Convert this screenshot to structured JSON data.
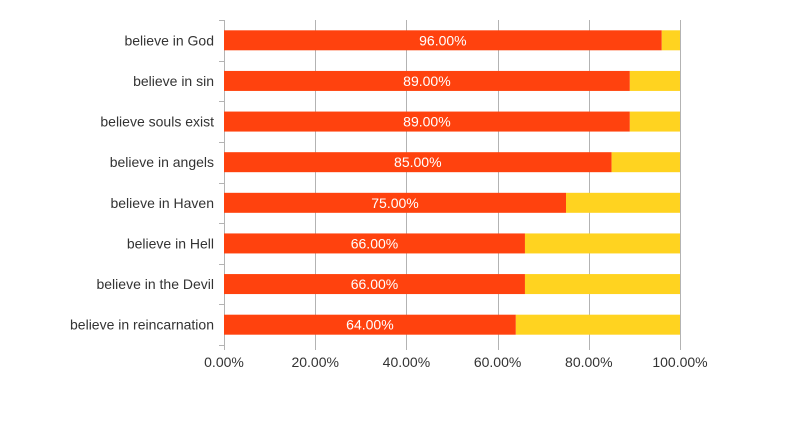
{
  "chart_data": {
    "type": "bar",
    "orientation": "horizontal",
    "stacked": true,
    "categories": [
      "believe in God",
      "believe in sin",
      "believe souls exist",
      "believe in angels",
      "believe in Haven",
      "believe in Hell",
      "believe in the Devil",
      "believe in reincarnation"
    ],
    "series": [
      {
        "values": [
          96,
          89,
          89,
          85,
          75,
          66,
          66,
          64
        ],
        "labels": [
          "96.00%",
          "89.00%",
          "89.00%",
          "85.00%",
          "75.00%",
          "66.00%",
          "66.00%",
          "64.00%"
        ],
        "color": "#FF420E"
      },
      {
        "values": [
          4,
          11,
          11,
          15,
          25,
          34,
          34,
          36
        ],
        "color": "#FFD320"
      }
    ],
    "xlim": [
      0,
      100
    ],
    "xticks": [
      "0.00%",
      "20.00%",
      "40.00%",
      "60.00%",
      "80.00%",
      "100.00%"
    ],
    "grid": true,
    "legend": "none",
    "colors": {
      "grid": "#b3b3b3",
      "label_text": "#ffffff",
      "axis_text": "#333333"
    }
  }
}
